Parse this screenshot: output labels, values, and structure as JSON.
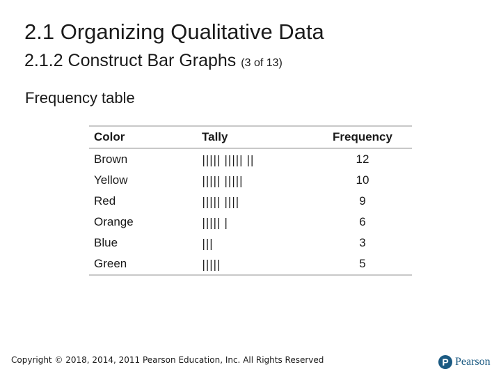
{
  "header": {
    "title": "2.1 Organizing Qualitative Data",
    "subtitle": "2.1.2 Construct Bar Graphs",
    "page_note": "(3 of 13)"
  },
  "section_heading": "Frequency table",
  "table": {
    "columns": [
      "Color",
      "Tally",
      "Frequency"
    ],
    "rows": [
      [
        "Brown",
        "||||| ||||| ||",
        12
      ],
      [
        "Yellow",
        "||||| |||||",
        10
      ],
      [
        "Red",
        "||||| ||||",
        9
      ],
      [
        "Orange",
        "||||| |",
        6
      ],
      [
        "Blue",
        "|||",
        3
      ],
      [
        "Green",
        "|||||",
        5
      ]
    ]
  },
  "footer": {
    "copyright": "Copyright © 2018, 2014, 2011 Pearson Education, Inc. All Rights Reserved",
    "logo": "Pearson"
  }
}
